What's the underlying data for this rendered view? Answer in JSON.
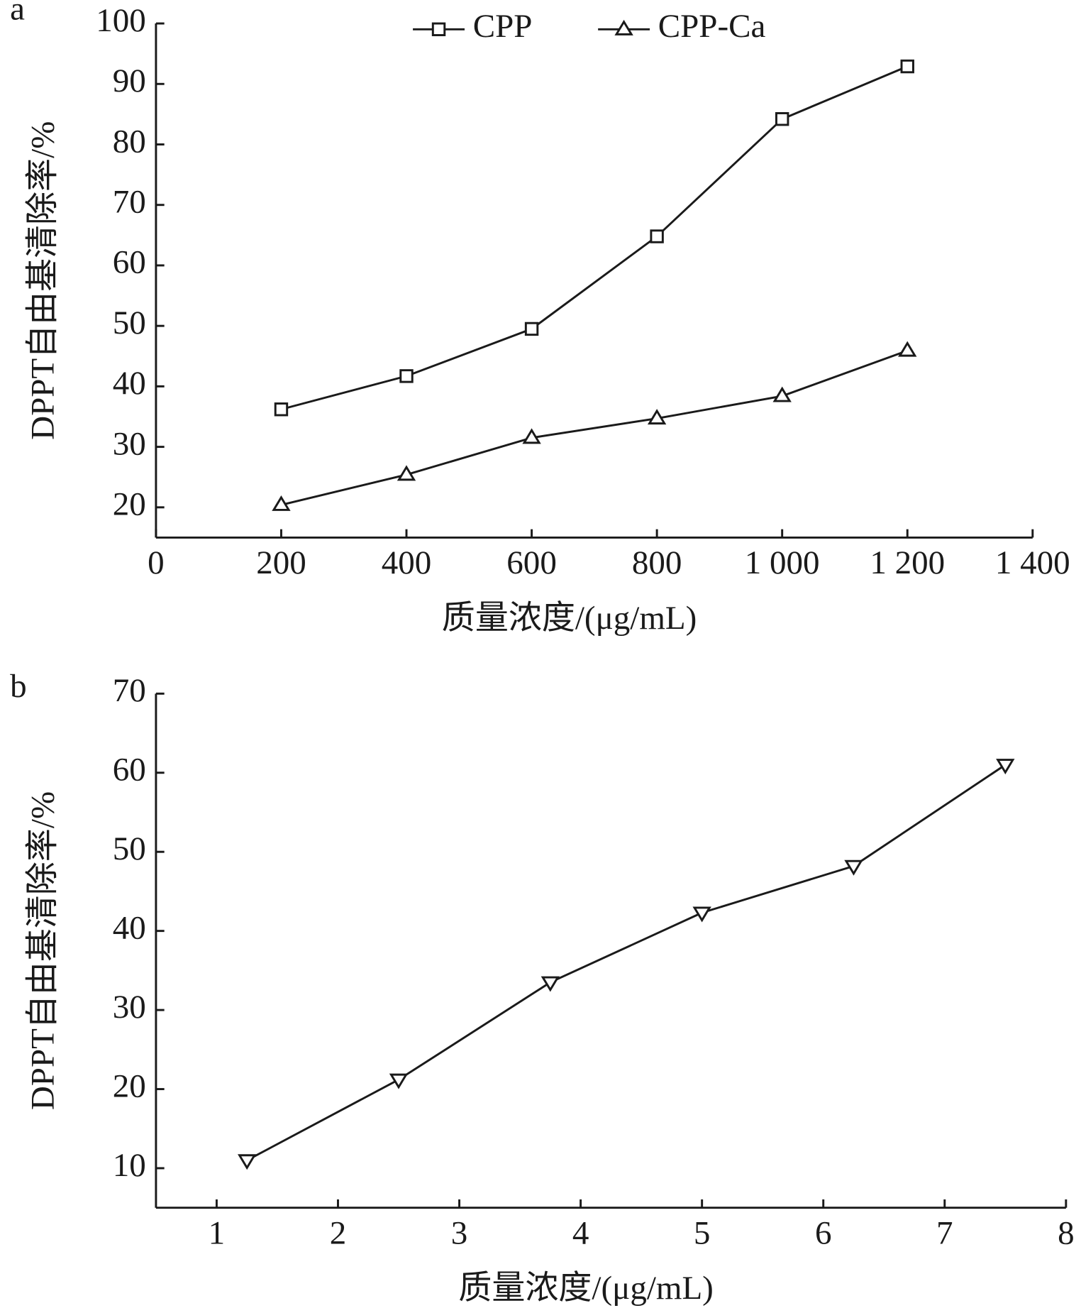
{
  "chart_data": [
    {
      "type": "line",
      "panel_label": "a",
      "x_label": "质量浓度/(μg/mL)",
      "y_label": "DPPT自由基清除率/%",
      "x": [
        200,
        400,
        600,
        800,
        1000,
        1200
      ],
      "series": [
        {
          "name": "CPP",
          "color": "#1a1a1a",
          "marker": "square",
          "values": [
            36.2,
            41.7,
            49.5,
            64.8,
            84.2,
            92.9
          ]
        },
        {
          "name": "CPP-Ca",
          "color": "#1a1a1a",
          "marker": "triangle-up",
          "values": [
            20.4,
            25.4,
            31.5,
            34.7,
            38.4,
            45.9
          ]
        }
      ],
      "xlim": [
        0,
        1400
      ],
      "xticks": [
        0,
        200,
        400,
        600,
        800,
        {
          "value": 1000,
          "label": "1 000"
        },
        {
          "value": 1200,
          "label": "1 200"
        },
        {
          "value": 1400,
          "label": "1 400"
        }
      ],
      "ylim": [
        15,
        100
      ],
      "yticks": [
        20,
        30,
        40,
        50,
        60,
        70,
        80,
        90,
        100
      ],
      "legend": "top-center"
    },
    {
      "type": "line",
      "panel_label": "b",
      "x_label": "质量浓度/(μg/mL)",
      "y_label": "DPPT自由基清除率/%",
      "x": [
        1.25,
        2.5,
        3.75,
        5,
        6.25,
        7.5
      ],
      "series": [
        {
          "color": "#1a1a1a",
          "marker": "triangle-down",
          "values": [
            11,
            21.2,
            33.5,
            42.3,
            48.2,
            61
          ]
        }
      ],
      "xlim": [
        0.5,
        8
      ],
      "xticks": [
        1,
        2,
        3,
        4,
        5,
        6,
        7,
        8
      ],
      "ylim": [
        5,
        70
      ],
      "yticks": [
        10,
        20,
        30,
        40,
        50,
        60,
        70
      ]
    }
  ]
}
